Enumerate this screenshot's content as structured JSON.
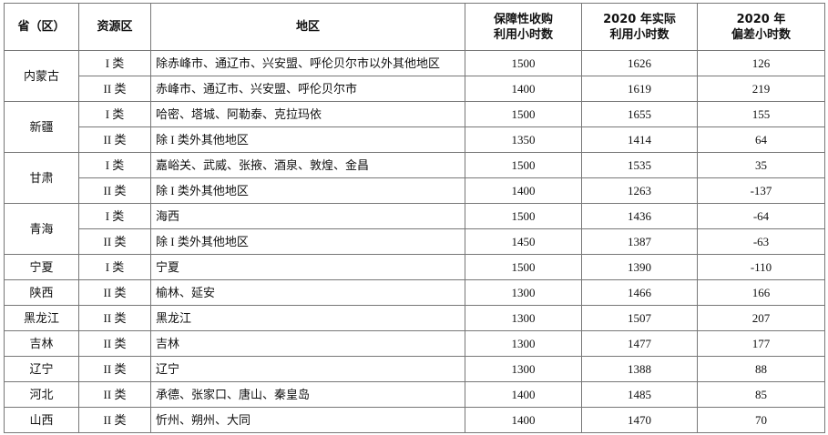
{
  "table": {
    "headers": [
      [
        "省（区）"
      ],
      [
        "资源区"
      ],
      [
        "地区"
      ],
      [
        "保障性收购",
        "利用小时数"
      ],
      [
        "2020 年实际",
        "利用小时数"
      ],
      [
        "2020 年",
        "偏差小时数"
      ]
    ],
    "groups": [
      {
        "province": "内蒙古",
        "rows": [
          {
            "class": "I 类",
            "region": "除赤峰市、通辽市、兴安盟、呼伦贝尔市以外其他地区",
            "guaranteed": 1500,
            "actual": 1626,
            "deviation": 126
          },
          {
            "class": "II 类",
            "region": "赤峰市、通辽市、兴安盟、呼伦贝尔市",
            "guaranteed": 1400,
            "actual": 1619,
            "deviation": 219
          }
        ]
      },
      {
        "province": "新疆",
        "rows": [
          {
            "class": "I 类",
            "region": "哈密、塔城、阿勒泰、克拉玛依",
            "guaranteed": 1500,
            "actual": 1655,
            "deviation": 155
          },
          {
            "class": "II 类",
            "region": "除 I 类外其他地区",
            "guaranteed": 1350,
            "actual": 1414,
            "deviation": 64
          }
        ]
      },
      {
        "province": "甘肃",
        "rows": [
          {
            "class": "I 类",
            "region": "嘉峪关、武威、张掖、酒泉、敦煌、金昌",
            "guaranteed": 1500,
            "actual": 1535,
            "deviation": 35
          },
          {
            "class": "II 类",
            "region": "除 I 类外其他地区",
            "guaranteed": 1400,
            "actual": 1263,
            "deviation": -137
          }
        ]
      },
      {
        "province": "青海",
        "rows": [
          {
            "class": "I 类",
            "region": "海西",
            "guaranteed": 1500,
            "actual": 1436,
            "deviation": -64
          },
          {
            "class": "II 类",
            "region": "除 I 类外其他地区",
            "guaranteed": 1450,
            "actual": 1387,
            "deviation": -63
          }
        ]
      },
      {
        "province": "宁夏",
        "rows": [
          {
            "class": "I 类",
            "region": "宁夏",
            "guaranteed": 1500,
            "actual": 1390,
            "deviation": -110
          }
        ]
      },
      {
        "province": "陕西",
        "rows": [
          {
            "class": "II 类",
            "region": "榆林、延安",
            "guaranteed": 1300,
            "actual": 1466,
            "deviation": 166
          }
        ]
      },
      {
        "province": "黑龙江",
        "rows": [
          {
            "class": "II 类",
            "region": "黑龙江",
            "guaranteed": 1300,
            "actual": 1507,
            "deviation": 207
          }
        ]
      },
      {
        "province": "吉林",
        "rows": [
          {
            "class": "II 类",
            "region": "吉林",
            "guaranteed": 1300,
            "actual": 1477,
            "deviation": 177
          }
        ]
      },
      {
        "province": "辽宁",
        "rows": [
          {
            "class": "II 类",
            "region": "辽宁",
            "guaranteed": 1300,
            "actual": 1388,
            "deviation": 88
          }
        ]
      },
      {
        "province": "河北",
        "rows": [
          {
            "class": "II 类",
            "region": "承德、张家口、唐山、秦皇岛",
            "guaranteed": 1400,
            "actual": 1485,
            "deviation": 85
          }
        ]
      },
      {
        "province": "山西",
        "rows": [
          {
            "class": "II 类",
            "region": "忻州、朔州、大同",
            "guaranteed": 1400,
            "actual": 1470,
            "deviation": 70
          }
        ]
      }
    ]
  }
}
